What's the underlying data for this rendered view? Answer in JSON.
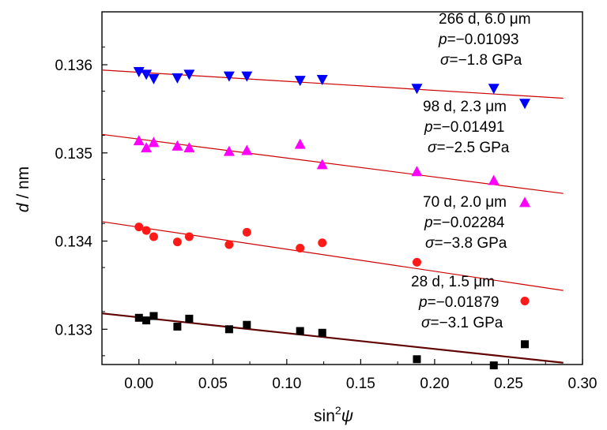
{
  "chart_data": {
    "type": "scatter",
    "xlabel": "sin",
    "xlabel_sup": "2",
    "xlabel_var": "ψ",
    "ylabel_var": "d",
    "ylabel_unit": " / nm",
    "xlim": [
      -0.025,
      0.3
    ],
    "ylim": [
      132.6,
      136.6
    ],
    "y_scale_note": "y values stored as picometers ×1000 of nm",
    "xticks": [
      0.0,
      0.05,
      0.1,
      0.15,
      0.2,
      0.25,
      0.3
    ],
    "xtick_labels": [
      "0.00",
      "0.05",
      "0.10",
      "0.15",
      "0.20",
      "0.25",
      "0.30"
    ],
    "yticks": [
      0.133,
      0.134,
      0.135,
      0.136
    ],
    "ytick_labels": [
      "0.133",
      "0.134",
      "0.135",
      "0.136"
    ],
    "grid": false,
    "series": [
      {
        "marker": "square",
        "color": "#000000",
        "x": [
          0.0,
          0.005,
          0.01,
          0.026,
          0.034,
          0.061,
          0.073,
          0.109,
          0.124,
          0.188,
          0.24,
          0.261
        ],
        "y": [
          0.13313,
          0.1331,
          0.13315,
          0.13303,
          0.13312,
          0.133,
          0.13305,
          0.13298,
          0.13296,
          0.13266,
          0.13259,
          0.13283
        ],
        "fit": {
          "x": [
            -0.025,
            0.287
          ],
          "y": [
            0.13318,
            0.13262
          ],
          "color": "#600000",
          "width": 2.2
        },
        "annotation": [
          "28 d, 1.5 μm",
          "p=−0.01879",
          "σ=−3.1 GPa"
        ]
      },
      {
        "marker": "circle",
        "color": "#ff1a1a",
        "x": [
          0.0,
          0.005,
          0.01,
          0.026,
          0.034,
          0.061,
          0.073,
          0.109,
          0.124,
          0.188,
          0.261
        ],
        "y": [
          0.13416,
          0.13412,
          0.13405,
          0.13399,
          0.13405,
          0.13396,
          0.1341,
          0.13392,
          0.13398,
          0.13376,
          0.13332
        ],
        "fit": {
          "x": [
            -0.025,
            0.287
          ],
          "y": [
            0.13422,
            0.13344
          ],
          "color": "#cc0000",
          "width": 1.2
        },
        "annotation": [
          "70 d, 2.0 μm",
          "p=−0.02284",
          "σ=−3.8 GPa"
        ]
      },
      {
        "marker": "triangle-up",
        "color": "#ff00ff",
        "x": [
          0.0,
          0.005,
          0.01,
          0.026,
          0.034,
          0.061,
          0.073,
          0.109,
          0.124,
          0.188,
          0.24,
          0.261
        ],
        "y": [
          0.13514,
          0.13506,
          0.13512,
          0.13508,
          0.13506,
          0.13502,
          0.13503,
          0.1351,
          0.13487,
          0.13479,
          0.13469,
          0.13444
        ],
        "fit": {
          "x": [
            -0.025,
            0.287
          ],
          "y": [
            0.13521,
            0.13454
          ],
          "color": "#cc0000",
          "width": 1.2
        },
        "annotation": [
          "98 d, 2.3 μm",
          "p=−0.01491",
          "σ=−2.5 GPa"
        ]
      },
      {
        "marker": "triangle-down",
        "color": "#0000ff",
        "x": [
          0.0,
          0.005,
          0.01,
          0.026,
          0.034,
          0.061,
          0.073,
          0.109,
          0.124,
          0.188,
          0.24,
          0.261
        ],
        "y": [
          0.13592,
          0.13589,
          0.13584,
          0.13585,
          0.13589,
          0.13587,
          0.13587,
          0.13582,
          0.13583,
          0.13573,
          0.13573,
          0.13556
        ],
        "fit": {
          "x": [
            -0.025,
            0.287
          ],
          "y": [
            0.13594,
            0.13562
          ],
          "color": "#cc0000",
          "width": 1.2
        },
        "annotation": [
          "266 d, 6.0 μm",
          "p=−0.01093",
          "σ=−1.8 GPa"
        ]
      }
    ]
  }
}
